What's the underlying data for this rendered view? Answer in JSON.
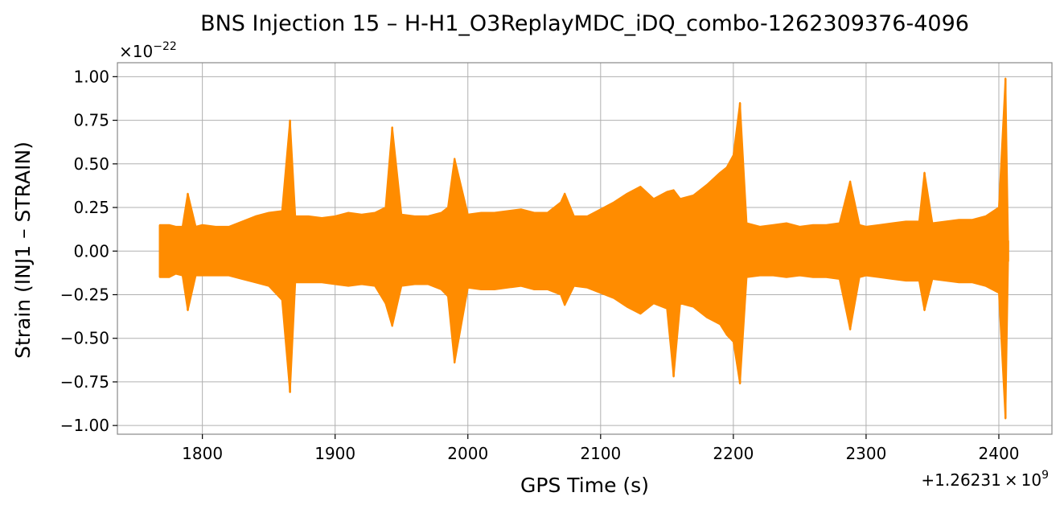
{
  "chart_data": {
    "type": "line",
    "title": "BNS Injection 15 – H-H1_O3ReplayMDC_iDQ_combo-1262309376-4096",
    "xlabel": "GPS Time (s)",
    "ylabel": "Strain (INJ1 – STRAIN)",
    "x_offset_text_prefix": "+1.26231",
    "x_offset_text_times": "×",
    "x_offset_text_base": "10",
    "x_offset_text_exp": "9",
    "y_multiplier_prefix": "×10",
    "y_multiplier_exp": "−22",
    "xlim": [
      1736,
      2440
    ],
    "ylim": [
      -1.05,
      1.08
    ],
    "x_ticks": [
      1800,
      1900,
      2000,
      2100,
      2200,
      2300,
      2400
    ],
    "x_tick_labels": [
      "1800",
      "1900",
      "2000",
      "2100",
      "2200",
      "2300",
      "2400"
    ],
    "y_ticks": [
      1.0,
      0.75,
      0.5,
      0.25,
      0.0,
      -0.25,
      -0.5,
      -0.75,
      -1.0
    ],
    "y_tick_labels": [
      "1.00",
      "0.75",
      "0.50",
      "0.25",
      "0.00",
      "−0.25",
      "−0.50",
      "−0.75",
      "−1.00"
    ],
    "grid": true,
    "series": [
      {
        "color": "#ff8c00",
        "x": [
          1768,
          1775,
          1780,
          1785,
          1789,
          1795,
          1800,
          1810,
          1820,
          1830,
          1840,
          1850,
          1860,
          1866,
          1870,
          1880,
          1890,
          1900,
          1910,
          1920,
          1930,
          1938,
          1943,
          1950,
          1960,
          1970,
          1980,
          1985,
          1990,
          2000,
          2010,
          2020,
          2030,
          2040,
          2050,
          2060,
          2070,
          2073,
          2080,
          2090,
          2100,
          2110,
          2120,
          2130,
          2140,
          2150,
          2155,
          2160,
          2170,
          2180,
          2190,
          2195,
          2200,
          2205,
          2210,
          2220,
          2230,
          2240,
          2250,
          2260,
          2270,
          2280,
          2288,
          2295,
          2300,
          2310,
          2320,
          2330,
          2340,
          2344,
          2350,
          2360,
          2370,
          2380,
          2390,
          2400,
          2405,
          2407
        ],
        "upper": [
          0.15,
          0.15,
          0.14,
          0.14,
          0.33,
          0.14,
          0.15,
          0.14,
          0.14,
          0.17,
          0.2,
          0.22,
          0.23,
          0.75,
          0.2,
          0.2,
          0.19,
          0.2,
          0.22,
          0.21,
          0.22,
          0.25,
          0.71,
          0.21,
          0.2,
          0.2,
          0.22,
          0.25,
          0.53,
          0.21,
          0.22,
          0.22,
          0.23,
          0.24,
          0.22,
          0.22,
          0.28,
          0.33,
          0.2,
          0.2,
          0.24,
          0.28,
          0.33,
          0.37,
          0.3,
          0.34,
          0.35,
          0.3,
          0.32,
          0.38,
          0.45,
          0.48,
          0.55,
          0.85,
          0.16,
          0.14,
          0.15,
          0.16,
          0.14,
          0.15,
          0.15,
          0.16,
          0.4,
          0.15,
          0.14,
          0.15,
          0.16,
          0.17,
          0.17,
          0.45,
          0.16,
          0.17,
          0.18,
          0.18,
          0.2,
          0.25,
          0.99,
          0.06
        ],
        "lower": [
          -0.15,
          -0.15,
          -0.13,
          -0.14,
          -0.34,
          -0.14,
          -0.14,
          -0.14,
          -0.14,
          -0.16,
          -0.18,
          -0.2,
          -0.28,
          -0.81,
          -0.18,
          -0.18,
          -0.18,
          -0.19,
          -0.2,
          -0.19,
          -0.2,
          -0.3,
          -0.43,
          -0.2,
          -0.19,
          -0.19,
          -0.22,
          -0.26,
          -0.64,
          -0.21,
          -0.22,
          -0.22,
          -0.21,
          -0.2,
          -0.22,
          -0.22,
          -0.25,
          -0.31,
          -0.2,
          -0.21,
          -0.24,
          -0.27,
          -0.32,
          -0.36,
          -0.3,
          -0.33,
          -0.72,
          -0.3,
          -0.32,
          -0.38,
          -0.42,
          -0.48,
          -0.52,
          -0.76,
          -0.15,
          -0.14,
          -0.14,
          -0.15,
          -0.14,
          -0.15,
          -0.15,
          -0.16,
          -0.45,
          -0.15,
          -0.14,
          -0.15,
          -0.16,
          -0.17,
          -0.17,
          -0.34,
          -0.16,
          -0.17,
          -0.18,
          -0.18,
          -0.2,
          -0.24,
          -0.96,
          -0.06
        ]
      }
    ]
  }
}
